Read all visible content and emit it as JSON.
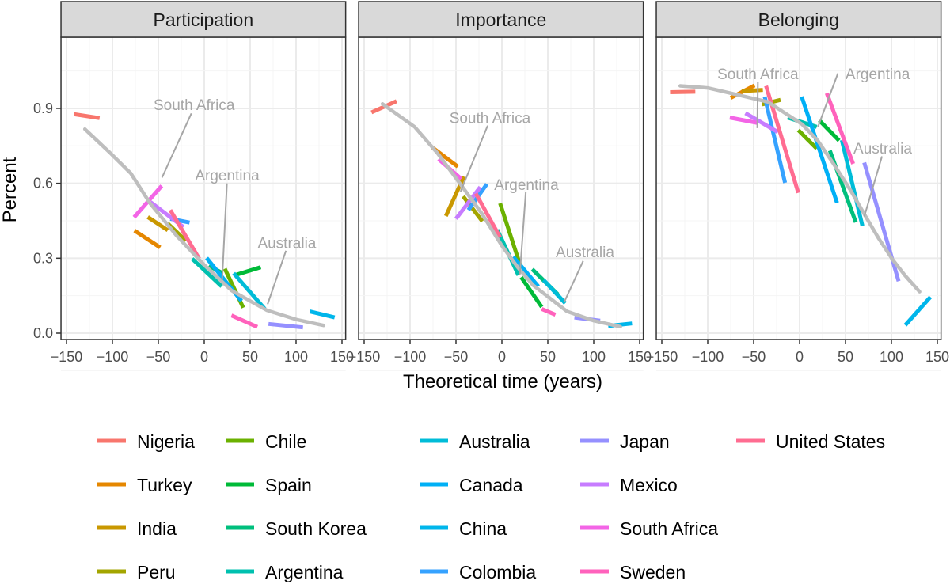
{
  "chart_data": {
    "type": "line",
    "xlabel": "Theoretical time (years)",
    "ylabel": "Percent",
    "xlim": [
      -156,
      154
    ],
    "ylim": [
      -0.027,
      1.185
    ],
    "x_ticks": [
      -150,
      -100,
      -50,
      0,
      50,
      100,
      150
    ],
    "x_tick_labels": [
      "−150",
      "−100",
      "−50",
      "0",
      "50",
      "100",
      "150"
    ],
    "y_ticks": [
      0.0,
      0.3,
      0.6,
      0.9
    ],
    "y_tick_labels": [
      "0.0",
      "0.3",
      "0.6",
      "0.9"
    ],
    "grid": true,
    "legend_position": "bottom",
    "smooth_color": "#BEBEBE",
    "annotation_color": "#A6A6A6",
    "countries": [
      {
        "name": "Nigeria",
        "color": "#F8766D"
      },
      {
        "name": "Turkey",
        "color": "#E58700"
      },
      {
        "name": "India",
        "color": "#C99800"
      },
      {
        "name": "Peru",
        "color": "#A3A500"
      },
      {
        "name": "Chile",
        "color": "#6BB100"
      },
      {
        "name": "Spain",
        "color": "#00BA38"
      },
      {
        "name": "South Korea",
        "color": "#00BF7D"
      },
      {
        "name": "Argentina",
        "color": "#00C0AF"
      },
      {
        "name": "Australia",
        "color": "#00BCD8"
      },
      {
        "name": "Canada",
        "color": "#00B0F6"
      },
      {
        "name": "China",
        "color": "#00B6EB"
      },
      {
        "name": "Colombia",
        "color": "#35A2FF"
      },
      {
        "name": "Japan",
        "color": "#9590FF"
      },
      {
        "name": "Mexico",
        "color": "#C77CFF"
      },
      {
        "name": "South Africa",
        "color": "#F365E6"
      },
      {
        "name": "Sweden",
        "color": "#FF62BC"
      },
      {
        "name": "United States",
        "color": "#FF6C91"
      }
    ],
    "panels": [
      {
        "title": "Participation",
        "segments": {
          "Nigeria": [
            [
              -142,
              0.877
            ],
            [
              -114,
              0.861
            ]
          ],
          "Turkey": [
            [
              -76,
              0.411
            ],
            [
              -48,
              0.343
            ]
          ],
          "India": [
            [
              -61.5,
              0.465
            ],
            [
              -39.7,
              0.412
            ]
          ],
          "Peru": [
            [
              -40,
              0.44
            ],
            [
              -20,
              0.37
            ]
          ],
          "Chile": [
            [
              22.4,
              0.258
            ],
            [
              42.5,
              0.102
            ]
          ],
          "Spain": [
            [
              33.3,
              0.232
            ],
            [
              61.5,
              0.264
            ]
          ],
          "South Korea": [
            [
              20,
              0.24
            ],
            [
              5,
              0.27
            ]
          ],
          "Argentina": [
            [
              -13.2,
              0.298
            ],
            [
              19,
              0.187
            ]
          ],
          "Australia": [
            [
              32,
              0.24
            ],
            [
              66,
              0.097
            ]
          ],
          "Canada": [
            [
              2.6,
              0.301
            ],
            [
              40.5,
              0.129
            ]
          ],
          "China": [
            [
              115,
              0.087
            ],
            [
              142,
              0.063
            ]
          ],
          "Colombia": [
            [
              -37,
              0.458
            ],
            [
              -16,
              0.443
            ]
          ],
          "Japan": [
            [
              70,
              0.037
            ],
            [
              107.5,
              0.023
            ]
          ],
          "Mexico": [
            [
              -58.6,
              0.525
            ],
            [
              -22.7,
              0.425
            ]
          ],
          "South Africa": [
            [
              -76.4,
              0.464
            ],
            [
              -46.3,
              0.59
            ]
          ],
          "Sweden": [
            [
              29.6,
              0.071
            ],
            [
              57.8,
              0.025
            ]
          ],
          "United States": [
            [
              -37,
              0.493
            ],
            [
              -5.5,
              0.298
            ]
          ]
        },
        "smooth": [
          [
            -130,
            0.817
          ],
          [
            -102,
            0.72
          ],
          [
            -80,
            0.64
          ],
          [
            -59,
            0.52
          ],
          [
            -30,
            0.39
          ],
          [
            -1,
            0.277
          ],
          [
            30,
            0.17
          ],
          [
            68,
            0.092
          ],
          [
            100,
            0.055
          ],
          [
            130,
            0.031
          ]
        ],
        "annotations": [
          {
            "label": "South Africa",
            "at": [
              -11,
              0.916
            ],
            "line": [
              [
                -14,
                0.88
              ],
              [
                -46,
                0.623
              ]
            ]
          },
          {
            "label": "Argentina",
            "at": [
              25,
              0.633
            ],
            "line": [
              [
                24.7,
                0.6
              ],
              [
                19.5,
                0.213
              ]
            ]
          },
          {
            "label": "Australia",
            "at": [
              90,
              0.363
            ],
            "line": [
              [
                89,
                0.33
              ],
              [
                69,
                0.116
              ]
            ]
          }
        ]
      },
      {
        "title": "Importance",
        "segments": {
          "Nigeria": [
            [
              -142,
              0.884
            ],
            [
              -114.7,
              0.929
            ]
          ],
          "Turkey": [
            [
              -75.9,
              0.744
            ],
            [
              -48,
              0.667
            ]
          ],
          "India": [
            [
              -61,
              0.469
            ],
            [
              -41.4,
              0.627
            ]
          ],
          "Peru": [
            [
              -42.2,
              0.548
            ],
            [
              -21.3,
              0.448
            ]
          ],
          "Chile": [
            [
              -2,
              0.52
            ],
            [
              19.5,
              0.277
            ]
          ],
          "Spain": [
            [
              21,
              0.224
            ],
            [
              43.4,
              0.105
            ]
          ],
          "South Korea": [
            [
              33,
              0.256
            ],
            [
              61,
              0.155
            ]
          ],
          "Argentina": [
            [
              -5,
              0.414
            ],
            [
              18,
              0.232
            ]
          ],
          "Australia": [
            [
              45.4,
              0.213
            ],
            [
              69,
              0.12
            ]
          ],
          "Canada": [
            [
              12.4,
              0.306
            ],
            [
              39.7,
              0.187
            ]
          ],
          "China": [
            [
              115.8,
              0.029
            ],
            [
              141.7,
              0.039
            ]
          ],
          "Colombia": [
            [
              -36.5,
              0.493
            ],
            [
              -16.4,
              0.597
            ]
          ],
          "Japan": [
            [
              79,
              0.063
            ],
            [
              107,
              0.05
            ]
          ],
          "Mexico": [
            [
              -50,
              0.458
            ],
            [
              -23.6,
              0.585
            ]
          ],
          "South Africa": [
            [
              -69,
              0.697
            ],
            [
              -44.3,
              0.618
            ]
          ],
          "Sweden": [
            [
              43.4,
              0.097
            ],
            [
              58.3,
              0.074
            ]
          ],
          "United States": [
            [
              -28.4,
              0.559
            ],
            [
              -2,
              0.384
            ]
          ]
        },
        "smooth": [
          [
            -130,
            0.918
          ],
          [
            -95,
            0.826
          ],
          [
            -70,
            0.72
          ],
          [
            -46.6,
            0.604
          ],
          [
            -22,
            0.48
          ],
          [
            0,
            0.35
          ],
          [
            17,
            0.265
          ],
          [
            34,
            0.192
          ],
          [
            71,
            0.087
          ],
          [
            100,
            0.05
          ],
          [
            129,
            0.026
          ]
        ],
        "annotations": [
          {
            "label": "South Africa",
            "at": [
              -13,
              0.863
            ],
            "line": [
              [
                -15.5,
                0.831
              ],
              [
                -45,
                0.567
              ]
            ]
          },
          {
            "label": "Argentina",
            "at": [
              26.7,
              0.596
            ],
            "line": [
              [
                26,
                0.564
              ],
              [
                19.5,
                0.234
              ]
            ]
          },
          {
            "label": "Australia",
            "at": [
              90.5,
              0.326
            ],
            "line": [
              [
                88.5,
                0.289
              ],
              [
                67.8,
                0.124
              ]
            ]
          }
        ]
      },
      {
        "title": "Belonging",
        "segments": {
          "Nigeria": [
            [
              -141,
              0.965
            ],
            [
              -113.5,
              0.967
            ]
          ],
          "Turkey": [
            [
              -75,
              0.942
            ],
            [
              -49,
              0.992
            ]
          ],
          "India": [
            [
              -63,
              0.969
            ],
            [
              -40,
              0.974
            ]
          ],
          "Peru": [
            [
              -40.8,
              0.916
            ],
            [
              -20.7,
              0.934
            ]
          ],
          "Chile": [
            [
              -1.4,
              0.813
            ],
            [
              18.7,
              0.739
            ]
          ],
          "Spain": [
            [
              21.5,
              0.852
            ],
            [
              43,
              0.771
            ]
          ],
          "South Korea": [
            [
              33,
              0.731
            ],
            [
              61.2,
              0.444
            ]
          ],
          "Argentina": [
            [
              -13,
              0.863
            ],
            [
              18.7,
              0.826
            ]
          ],
          "Australia": [
            [
              46,
              0.773
            ],
            [
              68.4,
              0.43
            ]
          ],
          "Canada": [
            [
              2.3,
              0.947
            ],
            [
              40.8,
              0.522
            ]
          ],
          "China": [
            [
              115,
              0.032
            ],
            [
              142.5,
              0.145
            ]
          ],
          "Colombia": [
            [
              -38,
              0.947
            ],
            [
              -15.8,
              0.602
            ]
          ],
          "Japan": [
            [
              70.4,
              0.683
            ],
            [
              107.8,
              0.208
            ]
          ],
          "Mexico": [
            [
              -59,
              0.881
            ],
            [
              -23.6,
              0.805
            ]
          ],
          "South Africa": [
            [
              -76,
              0.863
            ],
            [
              -46,
              0.842
            ]
          ],
          "Sweden": [
            [
              29.6,
              0.961
            ],
            [
              58.3,
              0.678
            ]
          ],
          "United States": [
            [
              -36.5,
              0.99
            ],
            [
              -1.4,
              0.562
            ]
          ]
        },
        "smooth": [
          [
            -130,
            0.99
          ],
          [
            -100,
            0.982
          ],
          [
            -77.6,
            0.963
          ],
          [
            -34.5,
            0.926
          ],
          [
            2.9,
            0.836
          ],
          [
            20,
            0.77
          ],
          [
            37,
            0.678
          ],
          [
            55,
            0.575
          ],
          [
            72,
            0.467
          ],
          [
            86,
            0.38
          ],
          [
            100.6,
            0.298
          ],
          [
            115,
            0.23
          ],
          [
            130.7,
            0.166
          ]
        ],
        "annotations": [
          {
            "label": "South Africa",
            "at": [
              -45.4,
              1.04
            ],
            "line": [
              [
                -45.4,
                1.005
              ],
              [
                -46,
                0.821
              ]
            ]
          },
          {
            "label": "Argentina",
            "at": [
              85,
              1.04
            ],
            "line": [
              [
                41.7,
                1.04
              ],
              [
                20,
                0.826
              ]
            ]
          },
          {
            "label": "Australia",
            "at": [
              90.5,
              0.741
            ],
            "line": [
              [
                89.7,
                0.708
              ],
              [
                70.4,
                0.467
              ]
            ]
          }
        ]
      }
    ]
  }
}
